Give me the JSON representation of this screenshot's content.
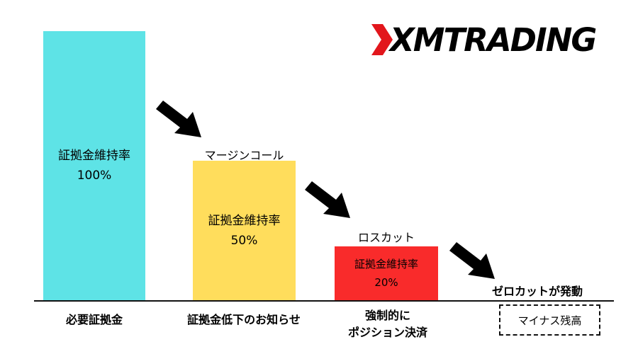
{
  "chart_data": {
    "type": "bar",
    "categories": [
      "必要証拠金",
      "証拠金低下のお知らせ",
      "強制的にポジション決済"
    ],
    "values": [
      100,
      50,
      20
    ],
    "unit": "%",
    "bars": [
      {
        "inner_label": "証拠金維持率",
        "value_label": "100%",
        "above_label": "",
        "color": "#5ee3e6"
      },
      {
        "inner_label": "証拠金維持率",
        "value_label": "50%",
        "above_label": "マージンコール",
        "color": "#ffdd5c"
      },
      {
        "inner_label": "証拠金維持率",
        "value_label": "20%",
        "above_label": "ロスカット",
        "color": "#f92b2b"
      }
    ],
    "bottom_labels": [
      {
        "line1": "必要証拠金",
        "line2": ""
      },
      {
        "line1": "証拠金低下のお知らせ",
        "line2": ""
      },
      {
        "line1": "強制的に",
        "line2": "ポジション決済"
      }
    ]
  },
  "logo": {
    "text": "XMTRADING"
  },
  "zero_cut": {
    "label": "ゼロカットが発動",
    "box_text": "マイナス残高"
  }
}
